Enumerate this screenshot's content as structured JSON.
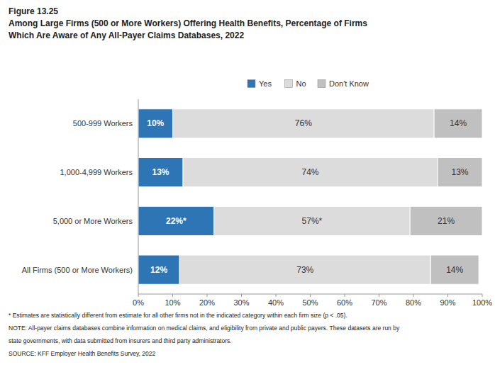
{
  "chart_data": {
    "type": "bar",
    "orientation": "horizontal",
    "stacked": true,
    "data_labels": true,
    "grid": false,
    "legend": "top",
    "title": "Figure 13.25",
    "subtitle": [
      "Among Large Firms (500 or More Workers) Offering Health Benefits, Percentage of Firms",
      "Which Are Aware of Any All-Payer Claims Databases, 2022"
    ],
    "annotations": [
      "* Estimates are statistically different from estimate for all other firms not in the indicated category within each firm size (p < .05).",
      "NOTE: All-payer claims databases combine information on medical claims, and eligibility from private and public payers.  These datasets are run by",
      "state governments, with data submitted from insurers and third party administrators.",
      "SOURCE: KFF Employer Health Benefits Survey, 2022"
    ],
    "categories": [
      "500-999 Workers",
      "1,000-4,999 Workers",
      "5,000 or More Workers",
      "All Firms (500 or More Workers)"
    ],
    "series": [
      {
        "name": "Yes",
        "color": "#2e75b6",
        "values": [
          10,
          13,
          22,
          12
        ],
        "value_labels": [
          "10%",
          "13%",
          "22%*",
          "12%"
        ]
      },
      {
        "name": "No",
        "color": "#dcdcdc",
        "values": [
          76,
          74,
          57,
          73
        ],
        "value_labels": [
          "76%",
          "74%",
          "57%*",
          "73%"
        ]
      },
      {
        "name": "Don't Know",
        "color": "#c0c0c0",
        "values": [
          14,
          13,
          21,
          14
        ],
        "value_labels": [
          "14%",
          "13%",
          "21%",
          "14%"
        ]
      }
    ],
    "xlim": [
      0,
      100
    ],
    "xticks": [
      {
        "value": 0,
        "label": "0%"
      },
      {
        "value": 10,
        "label": "10%"
      },
      {
        "value": 20,
        "label": "20%"
      },
      {
        "value": 30,
        "label": "30%"
      },
      {
        "value": 40,
        "label": "40%"
      },
      {
        "value": 50,
        "label": "50%"
      },
      {
        "value": 60,
        "label": "60%"
      },
      {
        "value": 70,
        "label": "70%"
      },
      {
        "value": 80,
        "label": "80%"
      },
      {
        "value": 90,
        "label": "90%"
      },
      {
        "value": 100,
        "label": "100%"
      }
    ]
  }
}
